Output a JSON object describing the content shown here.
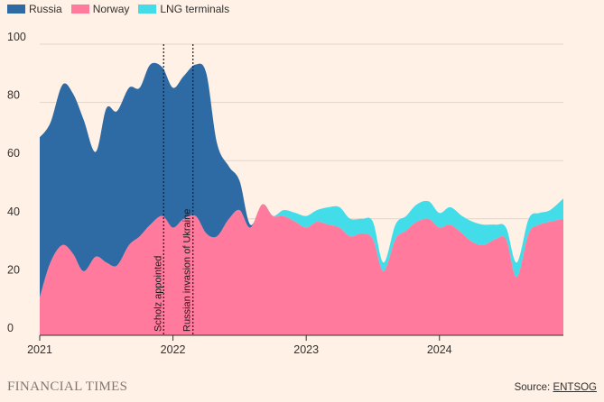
{
  "legend": [
    {
      "name": "Russia",
      "color": "#2e6aa3"
    },
    {
      "name": "Norway",
      "color": "#ff7a9c"
    },
    {
      "name": "LNG terminals",
      "color": "#42dde8"
    }
  ],
  "footer": {
    "logo_text": "FINANCIAL TIMES",
    "source_prefix": "Source: ",
    "source_link": "ENTSOG"
  },
  "chart_data": {
    "type": "area",
    "stacked": true,
    "stack_order": [
      "Norway",
      "LNG terminals",
      "Russia"
    ],
    "ylim": [
      0,
      100
    ],
    "yticks": [
      0,
      20,
      40,
      60,
      80,
      100
    ],
    "xlim": [
      2021.0,
      2024.93
    ],
    "xticks": [
      {
        "value": 2021,
        "label": "2021"
      },
      {
        "value": 2022,
        "label": "2022"
      },
      {
        "value": 2023,
        "label": "2023"
      },
      {
        "value": 2024,
        "label": "2024"
      }
    ],
    "grid": true,
    "legend_position": "top-left",
    "x": [
      2021.0,
      2021.08,
      2021.17,
      2021.25,
      2021.33,
      2021.42,
      2021.5,
      2021.58,
      2021.67,
      2021.75,
      2021.83,
      2021.92,
      2022.0,
      2022.08,
      2022.17,
      2022.25,
      2022.33,
      2022.42,
      2022.5,
      2022.58,
      2022.67,
      2022.75,
      2022.83,
      2022.92,
      2023.0,
      2023.08,
      2023.17,
      2023.25,
      2023.33,
      2023.42,
      2023.5,
      2023.58,
      2023.67,
      2023.75,
      2023.83,
      2023.92,
      2024.0,
      2024.08,
      2024.17,
      2024.25,
      2024.33,
      2024.42,
      2024.5,
      2024.58,
      2024.67,
      2024.75,
      2024.83,
      2024.93
    ],
    "series": [
      {
        "name": "Norway",
        "color": "#ff7a9c",
        "values": [
          13,
          25,
          31,
          28,
          22,
          27,
          25,
          24,
          31,
          34,
          38,
          41,
          37,
          40,
          41,
          35,
          34,
          40,
          43,
          37,
          45,
          41,
          41,
          39,
          37,
          39,
          38,
          37,
          34,
          35,
          33,
          22,
          33,
          36,
          39,
          40,
          37,
          38,
          35,
          32,
          31,
          33,
          33,
          20,
          35,
          38,
          39,
          40
        ]
      },
      {
        "name": "LNG terminals",
        "color": "#42dde8",
        "values": [
          0,
          0,
          0,
          0,
          0,
          0,
          0,
          0,
          0,
          0,
          0,
          0,
          0,
          0,
          0,
          0,
          0,
          0,
          0,
          0,
          0,
          0,
          2,
          3,
          4,
          4,
          6,
          7,
          6,
          5,
          6,
          3,
          5,
          5,
          6,
          6,
          5,
          6,
          6,
          7,
          7,
          5,
          4,
          5,
          5,
          4,
          4,
          7
        ]
      },
      {
        "name": "Russia",
        "color": "#2e6aa3",
        "values": [
          55,
          48,
          55,
          55,
          52,
          36,
          53,
          53,
          54,
          51,
          55,
          51,
          48,
          49,
          52,
          55,
          32,
          18,
          10,
          1,
          0,
          0,
          0,
          0,
          0,
          0,
          0,
          0,
          0,
          0,
          0,
          0,
          0,
          0,
          0,
          0,
          0,
          0,
          0,
          0,
          0,
          0,
          0,
          0,
          0,
          0,
          0,
          0
        ]
      }
    ],
    "annotations": [
      {
        "x": 2021.93,
        "label": "Scholz appointed"
      },
      {
        "x": 2022.15,
        "label": "Russian invasion of Ukraine"
      }
    ]
  }
}
